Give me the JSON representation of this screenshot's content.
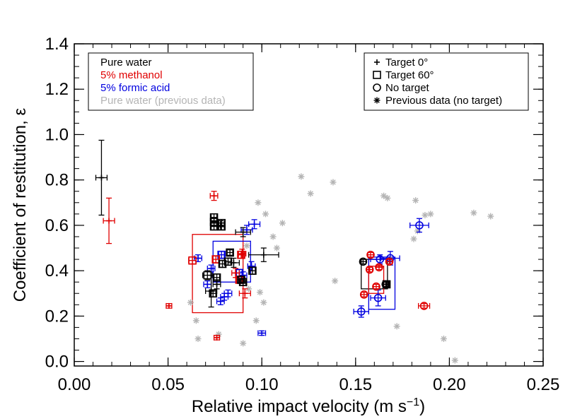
{
  "chart_data": {
    "type": "scatter",
    "title": "",
    "xlabel": "Relative impact velocity (m s",
    "xlabel_sup": "−1",
    "xlabel_close": ")",
    "ylabel": "Coefficient of restitution, ε",
    "xlim": [
      0,
      0.25
    ],
    "ylim": [
      -0.02,
      1.4
    ],
    "x_ticks": [
      {
        "v": 0.0,
        "label": "0.00"
      },
      {
        "v": 0.05,
        "label": "0.05"
      },
      {
        "v": 0.1,
        "label": "0.10"
      },
      {
        "v": 0.15,
        "label": "0.15"
      },
      {
        "v": 0.2,
        "label": "0.20"
      },
      {
        "v": 0.25,
        "label": "0.25"
      }
    ],
    "y_ticks": [
      {
        "v": 0.0,
        "label": "0.0"
      },
      {
        "v": 0.2,
        "label": "0.2"
      },
      {
        "v": 0.4,
        "label": "0.4"
      },
      {
        "v": 0.6,
        "label": "0.6"
      },
      {
        "v": 0.8,
        "label": "0.8"
      },
      {
        "v": 1.0,
        "label": "1.0"
      },
      {
        "v": 1.2,
        "label": "1.2"
      },
      {
        "v": 1.4,
        "label": "1.4"
      }
    ],
    "grid": false,
    "colors": {
      "water": "#000000",
      "methanol": "#e00000",
      "formic": "#0000e0",
      "previous": "#b4b4b4"
    },
    "legend_fluid": {
      "placement": "top-left",
      "entries": [
        {
          "label": "Pure water",
          "color": "#000000"
        },
        {
          "label": "5% methanol",
          "color": "#e00000"
        },
        {
          "label": "5% formic acid",
          "color": "#0000e0"
        },
        {
          "label": "Pure water (previous data)",
          "color": "#b4b4b4"
        }
      ]
    },
    "legend_symbol": {
      "placement": "top-right",
      "entries": [
        {
          "label": "Target 0°",
          "symbol": "plus"
        },
        {
          "label": "Target 60°",
          "symbol": "square"
        },
        {
          "label": "No target",
          "symbol": "circle"
        },
        {
          "label": "Previous data (no target)",
          "symbol": "asterisk"
        }
      ]
    },
    "series": [
      {
        "group": "water",
        "symbol": "plus",
        "points": [
          {
            "x": 0.0145,
            "y": 0.81,
            "xerr": 0.003,
            "yerr": 0.165
          },
          {
            "x": 0.078,
            "y": 0.6,
            "xerr": 0.002,
            "yerr": 0.02
          },
          {
            "x": 0.09,
            "y": 0.57,
            "xerr": 0.004,
            "yerr": 0.02
          },
          {
            "x": 0.085,
            "y": 0.435,
            "xerr": 0.003,
            "yerr": 0.02
          },
          {
            "x": 0.101,
            "y": 0.47,
            "xerr": 0.008,
            "yerr": 0.03
          },
          {
            "x": 0.073,
            "y": 0.31,
            "xerr": 0.003,
            "yerr": 0.07
          },
          {
            "x": 0.076,
            "y": 0.34,
            "xerr": 0.002,
            "yerr": 0.02
          }
        ]
      },
      {
        "group": "water",
        "symbol": "square",
        "points": [
          {
            "x": 0.0745,
            "y": 0.635,
            "xerr": 0.0015,
            "yerr": 0.015
          },
          {
            "x": 0.0745,
            "y": 0.615,
            "xerr": 0.0015,
            "yerr": 0.015
          },
          {
            "x": 0.0745,
            "y": 0.595,
            "xerr": 0.0015,
            "yerr": 0.015
          },
          {
            "x": 0.0785,
            "y": 0.61,
            "xerr": 0.0015,
            "yerr": 0.015
          },
          {
            "x": 0.0785,
            "y": 0.595,
            "xerr": 0.0015,
            "yerr": 0.015
          },
          {
            "x": 0.083,
            "y": 0.48,
            "xerr": 0.0015,
            "yerr": 0.012
          },
          {
            "x": 0.079,
            "y": 0.43,
            "xerr": 0.0015,
            "yerr": 0.015
          },
          {
            "x": 0.082,
            "y": 0.44,
            "xerr": 0.0015,
            "yerr": 0.015
          },
          {
            "x": 0.071,
            "y": 0.38,
            "xerr": 0.0025,
            "yerr": 0.02
          },
          {
            "x": 0.076,
            "y": 0.37,
            "xerr": 0.0015,
            "yerr": 0.015
          },
          {
            "x": 0.089,
            "y": 0.36,
            "xerr": 0.0015,
            "yerr": 0.015
          },
          {
            "x": 0.095,
            "y": 0.4,
            "xerr": 0.0015,
            "yerr": 0.015
          },
          {
            "x": 0.09,
            "y": 0.35,
            "xerr": 0.0015,
            "yerr": 0.015
          },
          {
            "x": 0.074,
            "y": 0.3,
            "xerr": 0.0015,
            "yerr": 0.015
          },
          {
            "x": 0.1665,
            "y": 0.34,
            "xerr": 0.0015,
            "yerr": 0.012
          }
        ]
      },
      {
        "group": "water",
        "symbol": "circle",
        "points": [
          {
            "x": 0.154,
            "y": 0.44,
            "xerr": 0.0015,
            "yerr": 0.01
          },
          {
            "x": 0.166,
            "y": 0.34,
            "xerr": 0.0015,
            "yerr": 0.01
          }
        ]
      },
      {
        "group": "methanol",
        "symbol": "plus",
        "points": [
          {
            "x": 0.0185,
            "y": 0.62,
            "xerr": 0.003,
            "yerr": 0.1
          },
          {
            "x": 0.0745,
            "y": 0.73,
            "xerr": 0.002,
            "yerr": 0.02
          },
          {
            "x": 0.0895,
            "y": 0.475,
            "xerr": 0.002,
            "yerr": 0.02
          },
          {
            "x": 0.086,
            "y": 0.39,
            "xerr": 0.002,
            "yerr": 0.02
          },
          {
            "x": 0.091,
            "y": 0.3,
            "xerr": 0.003,
            "yerr": 0.02
          },
          {
            "x": 0.076,
            "y": 0.105,
            "xerr": 0.0015,
            "yerr": 0.01
          },
          {
            "x": 0.0505,
            "y": 0.245,
            "xerr": 0.0015,
            "yerr": 0.01
          }
        ]
      },
      {
        "group": "methanol",
        "symbol": "square",
        "points": [
          {
            "x": 0.063,
            "y": 0.445,
            "xerr": 0.002,
            "yerr": 0.015
          },
          {
            "x": 0.0755,
            "y": 0.45,
            "xerr": 0.0015,
            "yerr": 0.015
          },
          {
            "x": 0.089,
            "y": 0.47,
            "xerr": 0.0015,
            "yerr": 0.015
          },
          {
            "x": 0.088,
            "y": 0.36,
            "xerr": 0.0015,
            "yerr": 0.015
          }
        ]
      },
      {
        "group": "methanol",
        "symbol": "circle",
        "points": [
          {
            "x": 0.158,
            "y": 0.47,
            "xerr": 0.0015,
            "yerr": 0.01
          },
          {
            "x": 0.1575,
            "y": 0.405,
            "xerr": 0.0015,
            "yerr": 0.01
          },
          {
            "x": 0.1625,
            "y": 0.415,
            "xerr": 0.0015,
            "yerr": 0.01
          },
          {
            "x": 0.161,
            "y": 0.33,
            "xerr": 0.0015,
            "yerr": 0.01
          },
          {
            "x": 0.1545,
            "y": 0.295,
            "xerr": 0.0015,
            "yerr": 0.01
          },
          {
            "x": 0.168,
            "y": 0.44,
            "xerr": 0.0015,
            "yerr": 0.01
          },
          {
            "x": 0.1865,
            "y": 0.245,
            "xerr": 0.003,
            "yerr": 0.01
          }
        ]
      },
      {
        "group": "formic",
        "symbol": "plus",
        "points": [
          {
            "x": 0.096,
            "y": 0.605,
            "xerr": 0.003,
            "yerr": 0.02
          },
          {
            "x": 0.092,
            "y": 0.58,
            "xerr": 0.003,
            "yerr": 0.02
          },
          {
            "x": 0.0945,
            "y": 0.42,
            "xerr": 0.002,
            "yerr": 0.02
          },
          {
            "x": 0.09,
            "y": 0.38,
            "xerr": 0.002,
            "yerr": 0.015
          },
          {
            "x": 0.082,
            "y": 0.3,
            "xerr": 0.002,
            "yerr": 0.015
          },
          {
            "x": 0.078,
            "y": 0.265,
            "xerr": 0.002,
            "yerr": 0.015
          },
          {
            "x": 0.08,
            "y": 0.285,
            "xerr": 0.002,
            "yerr": 0.015
          },
          {
            "x": 0.1,
            "y": 0.125,
            "xerr": 0.002,
            "yerr": 0.01
          },
          {
            "x": 0.066,
            "y": 0.455,
            "xerr": 0.002,
            "yerr": 0.015
          },
          {
            "x": 0.073,
            "y": 0.41,
            "xerr": 0.002,
            "yerr": 0.015
          },
          {
            "x": 0.071,
            "y": 0.34,
            "xerr": 0.002,
            "yerr": 0.015
          }
        ]
      },
      {
        "group": "formic",
        "symbol": "square",
        "points": [
          {
            "x": 0.0785,
            "y": 0.47,
            "xerr": 0.0015,
            "yerr": 0.015
          },
          {
            "x": 0.088,
            "y": 0.39,
            "xerr": 0.0015,
            "yerr": 0.015
          }
        ]
      },
      {
        "group": "formic",
        "symbol": "circle",
        "points": [
          {
            "x": 0.184,
            "y": 0.6,
            "xerr": 0.005,
            "yerr": 0.03
          },
          {
            "x": 0.163,
            "y": 0.45,
            "xerr": 0.005,
            "yerr": 0.02
          },
          {
            "x": 0.1685,
            "y": 0.455,
            "xerr": 0.005,
            "yerr": 0.03
          },
          {
            "x": 0.153,
            "y": 0.22,
            "xerr": 0.004,
            "yerr": 0.025
          },
          {
            "x": 0.162,
            "y": 0.28,
            "xerr": 0.004,
            "yerr": 0.035
          }
        ]
      },
      {
        "group": "previous",
        "symbol": "asterisk",
        "points": [
          {
            "x": 0.121,
            "y": 0.815
          },
          {
            "x": 0.126,
            "y": 0.74
          },
          {
            "x": 0.138,
            "y": 0.79
          },
          {
            "x": 0.139,
            "y": 0.355
          },
          {
            "x": 0.098,
            "y": 0.7
          },
          {
            "x": 0.102,
            "y": 0.65
          },
          {
            "x": 0.111,
            "y": 0.61
          },
          {
            "x": 0.106,
            "y": 0.55
          },
          {
            "x": 0.108,
            "y": 0.5
          },
          {
            "x": 0.101,
            "y": 0.26
          },
          {
            "x": 0.099,
            "y": 0.305
          },
          {
            "x": 0.097,
            "y": 0.18
          },
          {
            "x": 0.093,
            "y": 0.32
          },
          {
            "x": 0.09,
            "y": 0.08
          },
          {
            "x": 0.077,
            "y": 0.12
          },
          {
            "x": 0.065,
            "y": 0.18
          },
          {
            "x": 0.066,
            "y": 0.1
          },
          {
            "x": 0.062,
            "y": 0.26
          },
          {
            "x": 0.092,
            "y": 0.51
          },
          {
            "x": 0.165,
            "y": 0.73
          },
          {
            "x": 0.167,
            "y": 0.72
          },
          {
            "x": 0.182,
            "y": 0.71
          },
          {
            "x": 0.181,
            "y": 0.54
          },
          {
            "x": 0.183,
            "y": 0.575
          },
          {
            "x": 0.187,
            "y": 0.645
          },
          {
            "x": 0.19,
            "y": 0.65
          },
          {
            "x": 0.213,
            "y": 0.655
          },
          {
            "x": 0.222,
            "y": 0.64
          },
          {
            "x": 0.172,
            "y": 0.155
          },
          {
            "x": 0.197,
            "y": 0.1
          },
          {
            "x": 0.203,
            "y": 0.005
          },
          {
            "x": 0.169,
            "y": 0.45
          }
        ]
      }
    ],
    "boxes": [
      {
        "group": "methanol",
        "x0": 0.063,
        "x1": 0.09,
        "y0": 0.215,
        "y1": 0.56
      },
      {
        "group": "formic",
        "x0": 0.074,
        "x1": 0.094,
        "y0": 0.35,
        "y1": 0.53
      },
      {
        "group": "water",
        "x0": 0.153,
        "x1": 0.167,
        "y0": 0.32,
        "y1": 0.45
      },
      {
        "group": "formic",
        "x0": 0.157,
        "x1": 0.171,
        "y0": 0.23,
        "y1": 0.46
      },
      {
        "group": "methanol",
        "x0": 0.157,
        "x1": 0.165,
        "y0": 0.3,
        "y1": 0.42
      }
    ]
  }
}
